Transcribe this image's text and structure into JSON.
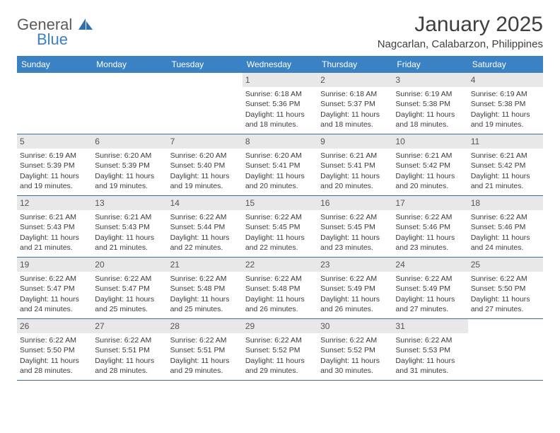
{
  "brand": {
    "line1": "General",
    "line2": "Blue",
    "text_color": "#5a5a5a",
    "accent_color": "#3b7fc4"
  },
  "title": "January 2025",
  "location": "Nagcarlan, Calabarzon, Philippines",
  "weekday_header_bg": "#3b82c4",
  "weekday_header_fg": "#ffffff",
  "daynum_bg": "#e8e8e8",
  "row_border_color": "#3b6fa0",
  "weekdays": [
    "Sunday",
    "Monday",
    "Tuesday",
    "Wednesday",
    "Thursday",
    "Friday",
    "Saturday"
  ],
  "weeks": [
    [
      {
        "day": "",
        "lines": []
      },
      {
        "day": "",
        "lines": []
      },
      {
        "day": "",
        "lines": []
      },
      {
        "day": "1",
        "lines": [
          "Sunrise: 6:18 AM",
          "Sunset: 5:36 PM",
          "Daylight: 11 hours",
          "and 18 minutes."
        ]
      },
      {
        "day": "2",
        "lines": [
          "Sunrise: 6:18 AM",
          "Sunset: 5:37 PM",
          "Daylight: 11 hours",
          "and 18 minutes."
        ]
      },
      {
        "day": "3",
        "lines": [
          "Sunrise: 6:19 AM",
          "Sunset: 5:38 PM",
          "Daylight: 11 hours",
          "and 18 minutes."
        ]
      },
      {
        "day": "4",
        "lines": [
          "Sunrise: 6:19 AM",
          "Sunset: 5:38 PM",
          "Daylight: 11 hours",
          "and 19 minutes."
        ]
      }
    ],
    [
      {
        "day": "5",
        "lines": [
          "Sunrise: 6:19 AM",
          "Sunset: 5:39 PM",
          "Daylight: 11 hours",
          "and 19 minutes."
        ]
      },
      {
        "day": "6",
        "lines": [
          "Sunrise: 6:20 AM",
          "Sunset: 5:39 PM",
          "Daylight: 11 hours",
          "and 19 minutes."
        ]
      },
      {
        "day": "7",
        "lines": [
          "Sunrise: 6:20 AM",
          "Sunset: 5:40 PM",
          "Daylight: 11 hours",
          "and 19 minutes."
        ]
      },
      {
        "day": "8",
        "lines": [
          "Sunrise: 6:20 AM",
          "Sunset: 5:41 PM",
          "Daylight: 11 hours",
          "and 20 minutes."
        ]
      },
      {
        "day": "9",
        "lines": [
          "Sunrise: 6:21 AM",
          "Sunset: 5:41 PM",
          "Daylight: 11 hours",
          "and 20 minutes."
        ]
      },
      {
        "day": "10",
        "lines": [
          "Sunrise: 6:21 AM",
          "Sunset: 5:42 PM",
          "Daylight: 11 hours",
          "and 20 minutes."
        ]
      },
      {
        "day": "11",
        "lines": [
          "Sunrise: 6:21 AM",
          "Sunset: 5:42 PM",
          "Daylight: 11 hours",
          "and 21 minutes."
        ]
      }
    ],
    [
      {
        "day": "12",
        "lines": [
          "Sunrise: 6:21 AM",
          "Sunset: 5:43 PM",
          "Daylight: 11 hours",
          "and 21 minutes."
        ]
      },
      {
        "day": "13",
        "lines": [
          "Sunrise: 6:21 AM",
          "Sunset: 5:43 PM",
          "Daylight: 11 hours",
          "and 21 minutes."
        ]
      },
      {
        "day": "14",
        "lines": [
          "Sunrise: 6:22 AM",
          "Sunset: 5:44 PM",
          "Daylight: 11 hours",
          "and 22 minutes."
        ]
      },
      {
        "day": "15",
        "lines": [
          "Sunrise: 6:22 AM",
          "Sunset: 5:45 PM",
          "Daylight: 11 hours",
          "and 22 minutes."
        ]
      },
      {
        "day": "16",
        "lines": [
          "Sunrise: 6:22 AM",
          "Sunset: 5:45 PM",
          "Daylight: 11 hours",
          "and 23 minutes."
        ]
      },
      {
        "day": "17",
        "lines": [
          "Sunrise: 6:22 AM",
          "Sunset: 5:46 PM",
          "Daylight: 11 hours",
          "and 23 minutes."
        ]
      },
      {
        "day": "18",
        "lines": [
          "Sunrise: 6:22 AM",
          "Sunset: 5:46 PM",
          "Daylight: 11 hours",
          "and 24 minutes."
        ]
      }
    ],
    [
      {
        "day": "19",
        "lines": [
          "Sunrise: 6:22 AM",
          "Sunset: 5:47 PM",
          "Daylight: 11 hours",
          "and 24 minutes."
        ]
      },
      {
        "day": "20",
        "lines": [
          "Sunrise: 6:22 AM",
          "Sunset: 5:47 PM",
          "Daylight: 11 hours",
          "and 25 minutes."
        ]
      },
      {
        "day": "21",
        "lines": [
          "Sunrise: 6:22 AM",
          "Sunset: 5:48 PM",
          "Daylight: 11 hours",
          "and 25 minutes."
        ]
      },
      {
        "day": "22",
        "lines": [
          "Sunrise: 6:22 AM",
          "Sunset: 5:48 PM",
          "Daylight: 11 hours",
          "and 26 minutes."
        ]
      },
      {
        "day": "23",
        "lines": [
          "Sunrise: 6:22 AM",
          "Sunset: 5:49 PM",
          "Daylight: 11 hours",
          "and 26 minutes."
        ]
      },
      {
        "day": "24",
        "lines": [
          "Sunrise: 6:22 AM",
          "Sunset: 5:49 PM",
          "Daylight: 11 hours",
          "and 27 minutes."
        ]
      },
      {
        "day": "25",
        "lines": [
          "Sunrise: 6:22 AM",
          "Sunset: 5:50 PM",
          "Daylight: 11 hours",
          "and 27 minutes."
        ]
      }
    ],
    [
      {
        "day": "26",
        "lines": [
          "Sunrise: 6:22 AM",
          "Sunset: 5:50 PM",
          "Daylight: 11 hours",
          "and 28 minutes."
        ]
      },
      {
        "day": "27",
        "lines": [
          "Sunrise: 6:22 AM",
          "Sunset: 5:51 PM",
          "Daylight: 11 hours",
          "and 28 minutes."
        ]
      },
      {
        "day": "28",
        "lines": [
          "Sunrise: 6:22 AM",
          "Sunset: 5:51 PM",
          "Daylight: 11 hours",
          "and 29 minutes."
        ]
      },
      {
        "day": "29",
        "lines": [
          "Sunrise: 6:22 AM",
          "Sunset: 5:52 PM",
          "Daylight: 11 hours",
          "and 29 minutes."
        ]
      },
      {
        "day": "30",
        "lines": [
          "Sunrise: 6:22 AM",
          "Sunset: 5:52 PM",
          "Daylight: 11 hours",
          "and 30 minutes."
        ]
      },
      {
        "day": "31",
        "lines": [
          "Sunrise: 6:22 AM",
          "Sunset: 5:53 PM",
          "Daylight: 11 hours",
          "and 31 minutes."
        ]
      },
      {
        "day": "",
        "lines": []
      }
    ]
  ]
}
